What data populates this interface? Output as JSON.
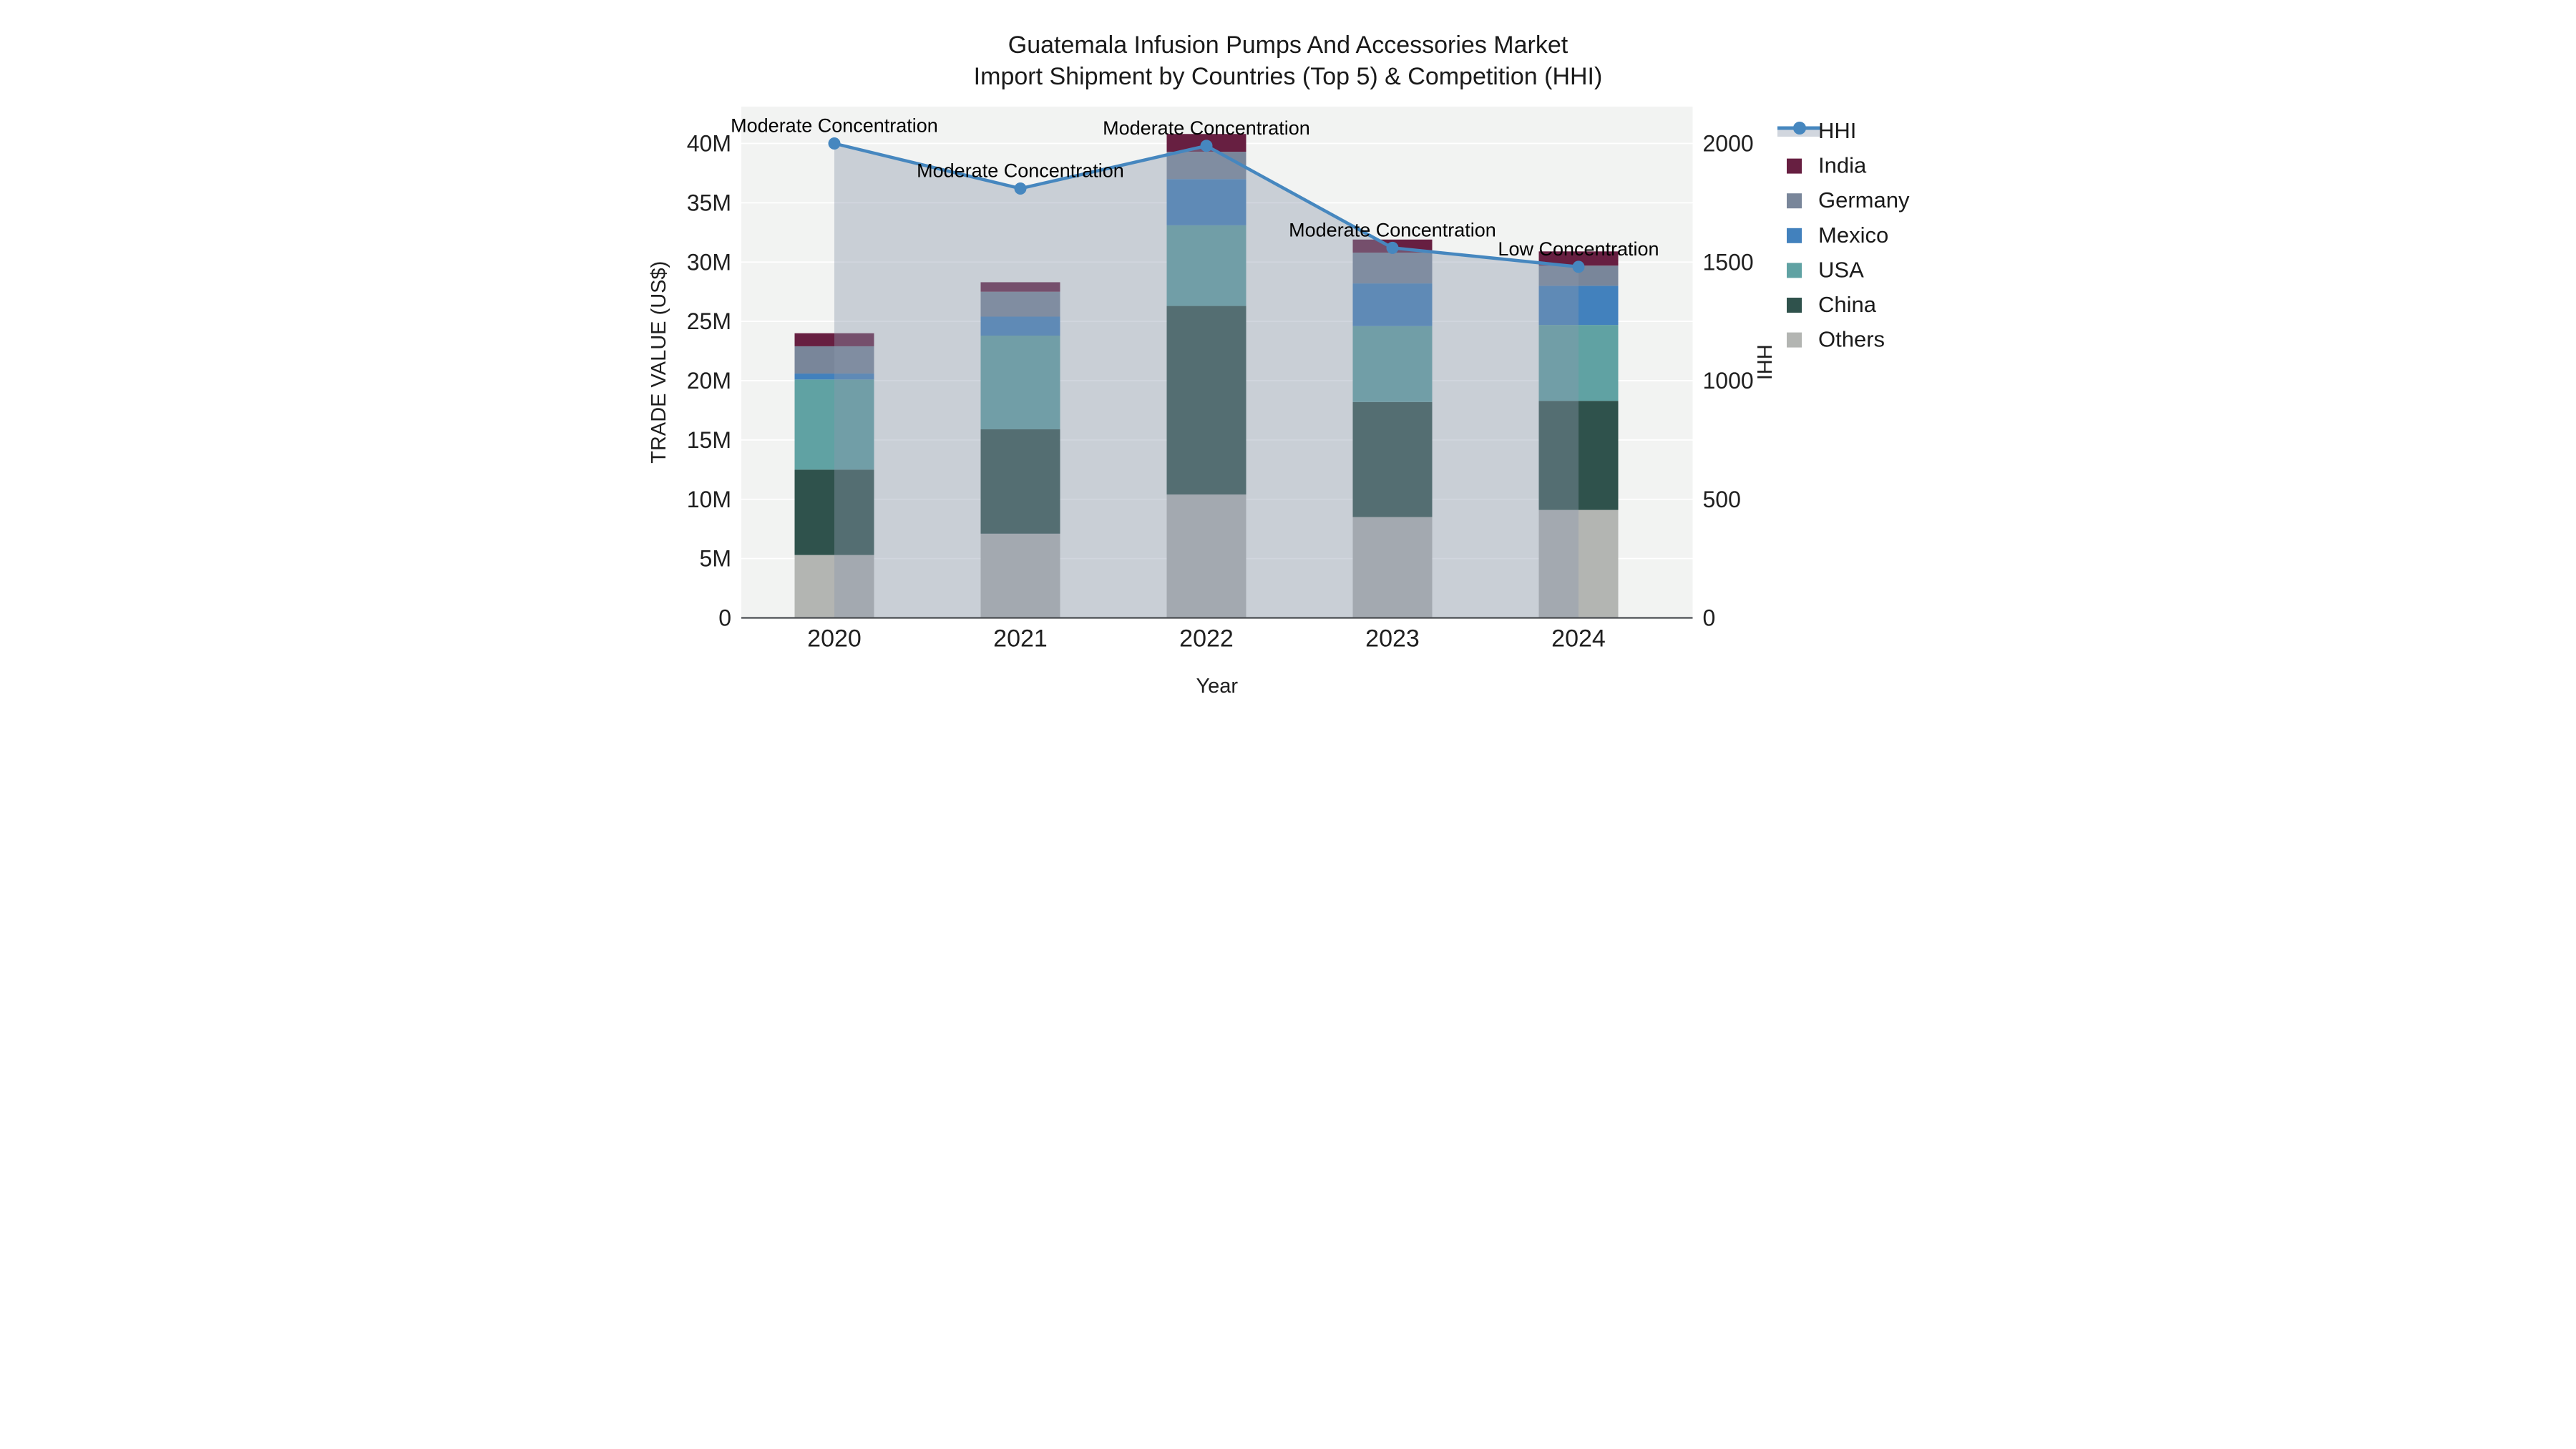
{
  "accent_colors": {
    "plot_background": "#f2f3f2",
    "gridline": "#ffffff",
    "axis_line": "#4a4d52",
    "hhi_line": "#4687bf",
    "hhi_fill": "rgba(140,152,172,0.40)",
    "text": "#111111"
  },
  "chart_data": {
    "type": "bar",
    "subtype": "stacked-bar-with-line",
    "title": "Guatemala Infusion Pumps And Accessories Market",
    "subtitle": "Import Shipment by Countries (Top 5) & Competition (HHI)",
    "xlabel": "Year",
    "ylabel": "TRADE VALUE (US$)",
    "ylabel_right": "HHI",
    "categories": [
      "2020",
      "2021",
      "2022",
      "2023",
      "2024"
    ],
    "series": [
      {
        "name": "Others",
        "type": "bar",
        "color": "#b3b5b2",
        "values_musd": [
          5.3,
          7.1,
          10.4,
          8.5,
          9.1
        ]
      },
      {
        "name": "China",
        "type": "bar",
        "color": "#2f524c",
        "values_musd": [
          7.2,
          8.8,
          15.9,
          9.7,
          9.2
        ]
      },
      {
        "name": "USA",
        "type": "bar",
        "color": "#60a2a3",
        "values_musd": [
          7.6,
          7.9,
          6.8,
          6.4,
          6.4
        ]
      },
      {
        "name": "Mexico",
        "type": "bar",
        "color": "#4281bd",
        "values_musd": [
          0.5,
          1.6,
          3.9,
          3.6,
          3.3
        ]
      },
      {
        "name": "Germany",
        "type": "bar",
        "color": "#79869a",
        "values_musd": [
          2.3,
          2.1,
          2.3,
          2.6,
          1.7
        ]
      },
      {
        "name": "India",
        "type": "bar",
        "color": "#671f41",
        "values_musd": [
          1.1,
          0.8,
          1.5,
          1.1,
          1.2
        ]
      }
    ],
    "line_series": {
      "name": "HHI",
      "type": "line",
      "color": "#4687bf",
      "fill": "tozeroy",
      "values": [
        2000,
        1810,
        1990,
        1560,
        1480
      ]
    },
    "annotations": [
      {
        "category": "2020",
        "text": "Moderate Concentration"
      },
      {
        "category": "2021",
        "text": "Moderate Concentration"
      },
      {
        "category": "2022",
        "text": "Moderate Concentration"
      },
      {
        "category": "2023",
        "text": "Moderate Concentration"
      },
      {
        "category": "2024",
        "text": "Low Concentration"
      }
    ],
    "y_axis_left": {
      "tick_labels": [
        "0",
        "5M",
        "10M",
        "15M",
        "20M",
        "25M",
        "30M",
        "35M",
        "40M"
      ],
      "tick_values_musd": [
        0,
        5,
        10,
        15,
        20,
        25,
        30,
        35,
        40
      ],
      "range_musd": [
        0,
        43.3
      ],
      "grid": true
    },
    "y_axis_right": {
      "tick_labels": [
        "0",
        "500",
        "1000",
        "1500",
        "2000"
      ],
      "tick_values": [
        0,
        500,
        1000,
        1500,
        2000
      ],
      "range": [
        0,
        2165
      ],
      "grid": false
    },
    "legend": {
      "position": "top-right",
      "entries": [
        "HHI",
        "India",
        "Germany",
        "Mexico",
        "USA",
        "China",
        "Others"
      ]
    }
  }
}
